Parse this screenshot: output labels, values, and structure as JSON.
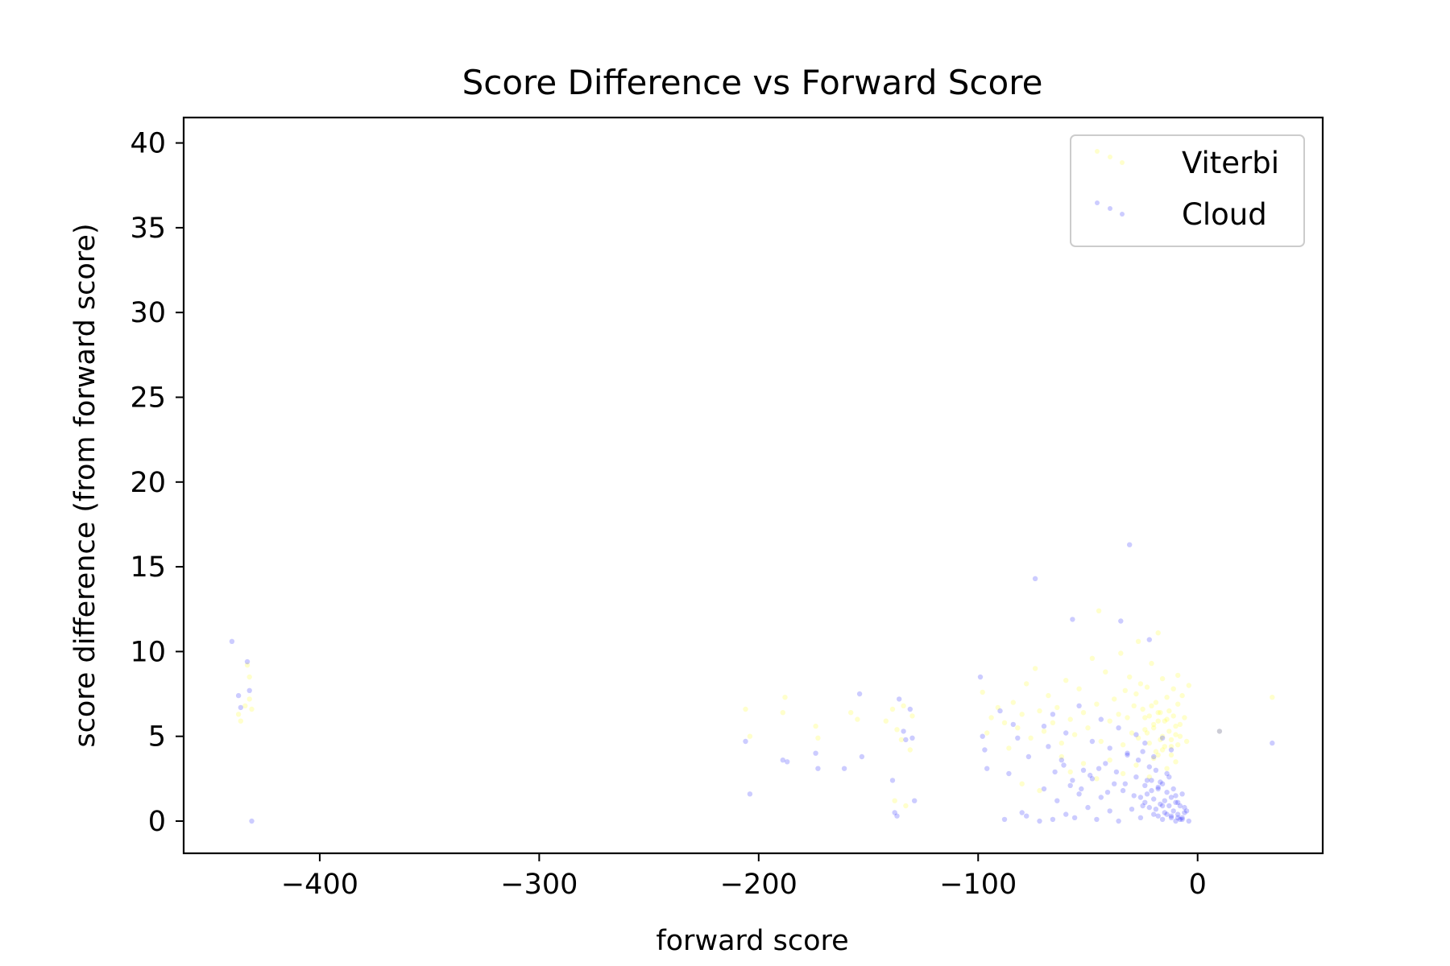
{
  "chart_data": {
    "type": "scatter",
    "title": "Score Difference vs Forward Score",
    "xlabel": "forward score",
    "ylabel": "score difference (from forward score)",
    "xlim": [
      -462,
      57
    ],
    "ylim": [
      -1.9,
      41.5
    ],
    "x_ticks": [
      -400,
      -300,
      -200,
      -100,
      0
    ],
    "x_tick_labels": [
      "−400",
      "−300",
      "−200",
      "−100",
      "0"
    ],
    "y_ticks": [
      0,
      5,
      10,
      15,
      20,
      25,
      30,
      35,
      40
    ],
    "y_tick_labels": [
      "0",
      "5",
      "10",
      "15",
      "20",
      "25",
      "30",
      "35",
      "40"
    ],
    "grid": false,
    "legend_position": "upper right",
    "marker_opacity": 0.2,
    "series": [
      {
        "name": "Viterbi",
        "color": "#ffff00",
        "points": [
          [
            -437,
            6.3
          ],
          [
            -436,
            5.9
          ],
          [
            -434,
            6.8
          ],
          [
            -432,
            7.2
          ],
          [
            -432,
            8.5
          ],
          [
            -433,
            9.2
          ],
          [
            -431,
            6.6
          ],
          [
            -206,
            6.6
          ],
          [
            -204,
            5.0
          ],
          [
            -189,
            6.4
          ],
          [
            -188,
            7.3
          ],
          [
            -174,
            5.6
          ],
          [
            -173,
            4.9
          ],
          [
            -158,
            6.4
          ],
          [
            -155,
            6.0
          ],
          [
            -142,
            5.9
          ],
          [
            -139,
            6.6
          ],
          [
            -137,
            5.4
          ],
          [
            -135,
            4.8
          ],
          [
            -134,
            6.8
          ],
          [
            -130,
            6.2
          ],
          [
            -138,
            1.2
          ],
          [
            -133,
            0.9
          ],
          [
            -131,
            4.2
          ],
          [
            -98,
            7.6
          ],
          [
            -96,
            5.2
          ],
          [
            -94,
            6.1
          ],
          [
            -91,
            6.7
          ],
          [
            -88,
            5.8
          ],
          [
            -86,
            4.3
          ],
          [
            -84,
            7.0
          ],
          [
            -82,
            5.5
          ],
          [
            -80,
            6.3
          ],
          [
            -78,
            8.1
          ],
          [
            -76,
            4.9
          ],
          [
            -74,
            9.0
          ],
          [
            -72,
            6.5
          ],
          [
            -70,
            5.3
          ],
          [
            -68,
            7.4
          ],
          [
            -66,
            5.8
          ],
          [
            -64,
            6.7
          ],
          [
            -62,
            4.6
          ],
          [
            -60,
            8.3
          ],
          [
            -58,
            6.0
          ],
          [
            -56,
            5.1
          ],
          [
            -54,
            7.8
          ],
          [
            -52,
            6.4
          ],
          [
            -50,
            5.5
          ],
          [
            -48,
            9.6
          ],
          [
            -46,
            6.9
          ],
          [
            -44,
            4.7
          ],
          [
            -42,
            8.8
          ],
          [
            -40,
            5.9
          ],
          [
            -38,
            7.2
          ],
          [
            -36,
            6.3
          ],
          [
            -35,
            9.9
          ],
          [
            -34,
            4.5
          ],
          [
            -33,
            7.7
          ],
          [
            -32,
            6.1
          ],
          [
            -31,
            8.5
          ],
          [
            -30,
            5.2
          ],
          [
            -29,
            6.8
          ],
          [
            -28,
            7.5
          ],
          [
            -27,
            4.9
          ],
          [
            -26,
            8.1
          ],
          [
            -25,
            6.6
          ],
          [
            -24,
            5.4
          ],
          [
            -23,
            7.9
          ],
          [
            -22,
            6.2
          ],
          [
            -21,
            9.3
          ],
          [
            -20,
            5.7
          ],
          [
            -19,
            7.0
          ],
          [
            -18,
            6.4
          ],
          [
            -17,
            4.8
          ],
          [
            -16,
            8.4
          ],
          [
            -15,
            5.9
          ],
          [
            -14,
            7.3
          ],
          [
            -13,
            6.5
          ],
          [
            -12,
            4.4
          ],
          [
            -11,
            7.8
          ],
          [
            -10,
            5.6
          ],
          [
            -9,
            6.9
          ],
          [
            -8,
            5.0
          ],
          [
            -7,
            7.4
          ],
          [
            -6,
            6.1
          ],
          [
            -5,
            4.7
          ],
          [
            -4,
            8.0
          ],
          [
            -62,
            3.8
          ],
          [
            -58,
            2.9
          ],
          [
            -52,
            3.4
          ],
          [
            -46,
            2.5
          ],
          [
            -40,
            3.6
          ],
          [
            -34,
            2.8
          ],
          [
            -28,
            3.3
          ],
          [
            -22,
            2.6
          ],
          [
            -18,
            3.9
          ],
          [
            -14,
            3.1
          ],
          [
            -10,
            3.5
          ],
          [
            -80,
            2.2
          ],
          [
            -72,
            1.8
          ],
          [
            -24,
            6.1
          ],
          [
            -23,
            5.2
          ],
          [
            -22,
            4.6
          ],
          [
            -21,
            6.8
          ],
          [
            -20,
            5.5
          ],
          [
            -19,
            4.1
          ],
          [
            -18,
            5.9
          ],
          [
            -17,
            6.4
          ],
          [
            -16,
            5.0
          ],
          [
            -15,
            4.4
          ],
          [
            -14,
            6.0
          ],
          [
            -13,
            5.3
          ],
          [
            -12,
            4.8
          ],
          [
            -11,
            6.2
          ],
          [
            -10,
            5.1
          ],
          [
            -9,
            4.5
          ],
          [
            -8,
            5.7
          ],
          [
            -20,
            3.7
          ],
          [
            -16,
            4.2
          ],
          [
            -12,
            3.9
          ],
          [
            -45,
            12.4
          ],
          [
            -27,
            10.6
          ],
          [
            -18,
            11.1
          ],
          [
            -9,
            8.6
          ],
          [
            10,
            5.3
          ],
          [
            34,
            7.3
          ]
        ]
      },
      {
        "name": "Cloud",
        "color": "#0000ff",
        "points": [
          [
            -440,
            10.6
          ],
          [
            -437,
            7.4
          ],
          [
            -436,
            6.7
          ],
          [
            -433,
            9.4
          ],
          [
            -432,
            7.7
          ],
          [
            -431,
            0.0
          ],
          [
            -206,
            4.7
          ],
          [
            -204,
            1.6
          ],
          [
            -189,
            3.6
          ],
          [
            -187,
            3.5
          ],
          [
            -174,
            4.0
          ],
          [
            -173,
            3.1
          ],
          [
            -161,
            3.1
          ],
          [
            -154,
            7.5
          ],
          [
            -153,
            3.8
          ],
          [
            -139,
            2.4
          ],
          [
            -138,
            0.5
          ],
          [
            -137,
            0.3
          ],
          [
            -136,
            7.2
          ],
          [
            -134,
            5.3
          ],
          [
            -133,
            4.8
          ],
          [
            -131,
            6.6
          ],
          [
            -129,
            1.2
          ],
          [
            -130,
            4.9
          ],
          [
            -99,
            8.5
          ],
          [
            -98,
            5.0
          ],
          [
            -97,
            4.2
          ],
          [
            -96,
            3.1
          ],
          [
            -90,
            6.5
          ],
          [
            -88,
            0.1
          ],
          [
            -86,
            2.8
          ],
          [
            -84,
            5.7
          ],
          [
            -82,
            4.9
          ],
          [
            -80,
            0.5
          ],
          [
            -78,
            0.3
          ],
          [
            -77,
            3.8
          ],
          [
            -74,
            14.3
          ],
          [
            -72,
            0.0
          ],
          [
            -70,
            1.9
          ],
          [
            -68,
            4.4
          ],
          [
            -66,
            0.1
          ],
          [
            -64,
            1.2
          ],
          [
            -62,
            3.6
          ],
          [
            -60,
            0.4
          ],
          [
            -58,
            2.1
          ],
          [
            -57,
            11.9
          ],
          [
            -56,
            0.2
          ],
          [
            -54,
            1.6
          ],
          [
            -52,
            3.0
          ],
          [
            -50,
            0.8
          ],
          [
            -48,
            2.5
          ],
          [
            -46,
            0.1
          ],
          [
            -44,
            1.4
          ],
          [
            -42,
            3.4
          ],
          [
            -40,
            0.6
          ],
          [
            -38,
            2.2
          ],
          [
            -36,
            0.0
          ],
          [
            -35,
            11.8
          ],
          [
            -34,
            1.8
          ],
          [
            -32,
            3.9
          ],
          [
            -31,
            16.3
          ],
          [
            -30,
            0.7
          ],
          [
            -28,
            2.6
          ],
          [
            -26,
            0.2
          ],
          [
            -25,
            4.1
          ],
          [
            -24,
            1.1
          ],
          [
            -22,
            10.7
          ],
          [
            -22,
            3.2
          ],
          [
            -20,
            0.4
          ],
          [
            -18,
            2.0
          ],
          [
            -16,
            0.9
          ],
          [
            -14,
            2.8
          ],
          [
            -12,
            0.3
          ],
          [
            -10,
            1.5
          ],
          [
            -8,
            0.1
          ],
          [
            -6,
            0.8
          ],
          [
            -4,
            0.0
          ],
          [
            10,
            5.3
          ],
          [
            34,
            4.6
          ],
          [
            -70,
            5.6
          ],
          [
            -66,
            6.3
          ],
          [
            -60,
            5.2
          ],
          [
            -54,
            6.8
          ],
          [
            -48,
            4.7
          ],
          [
            -44,
            6.0
          ],
          [
            -40,
            4.3
          ],
          [
            -36,
            5.5
          ],
          [
            -32,
            4.0
          ],
          [
            -28,
            5.1
          ],
          [
            -24,
            4.6
          ],
          [
            -20,
            3.8
          ],
          [
            -16,
            4.9
          ],
          [
            -12,
            4.2
          ],
          [
            -65,
            2.9
          ],
          [
            -61,
            3.3
          ],
          [
            -57,
            2.4
          ],
          [
            -53,
            1.9
          ],
          [
            -49,
            2.7
          ],
          [
            -45,
            3.1
          ],
          [
            -41,
            1.7
          ],
          [
            -37,
            2.9
          ],
          [
            -33,
            2.2
          ],
          [
            -29,
            1.5
          ],
          [
            -27,
            3.6
          ],
          [
            -23,
            2.4
          ],
          [
            -21,
            1.8
          ],
          [
            -19,
            3.0
          ],
          [
            -17,
            2.3
          ],
          [
            -15,
            1.2
          ],
          [
            -13,
            2.6
          ],
          [
            -11,
            1.9
          ],
          [
            -9,
            1.1
          ],
          [
            -7,
            1.6
          ],
          [
            -5,
            0.6
          ],
          [
            -26,
            1.4
          ],
          [
            -25,
            0.9
          ],
          [
            -24,
            2.1
          ],
          [
            -23,
            1.6
          ],
          [
            -22,
            0.8
          ],
          [
            -21,
            2.4
          ],
          [
            -20,
            1.3
          ],
          [
            -19,
            0.7
          ],
          [
            -18,
            1.9
          ],
          [
            -17,
            1.0
          ],
          [
            -16,
            2.2
          ],
          [
            -15,
            0.5
          ],
          [
            -14,
            1.7
          ],
          [
            -13,
            0.9
          ],
          [
            -12,
            1.4
          ],
          [
            -11,
            0.6
          ],
          [
            -10,
            1.1
          ],
          [
            -9,
            0.4
          ],
          [
            -8,
            0.9
          ],
          [
            -7,
            0.2
          ],
          [
            -6,
            0.5
          ],
          [
            -18,
            0.3
          ],
          [
            -16,
            0.1
          ],
          [
            -14,
            0.4
          ],
          [
            -12,
            0.2
          ],
          [
            -10,
            0.0
          ],
          [
            -9,
            0.2
          ],
          [
            -7,
            0.1
          ]
        ]
      }
    ]
  }
}
